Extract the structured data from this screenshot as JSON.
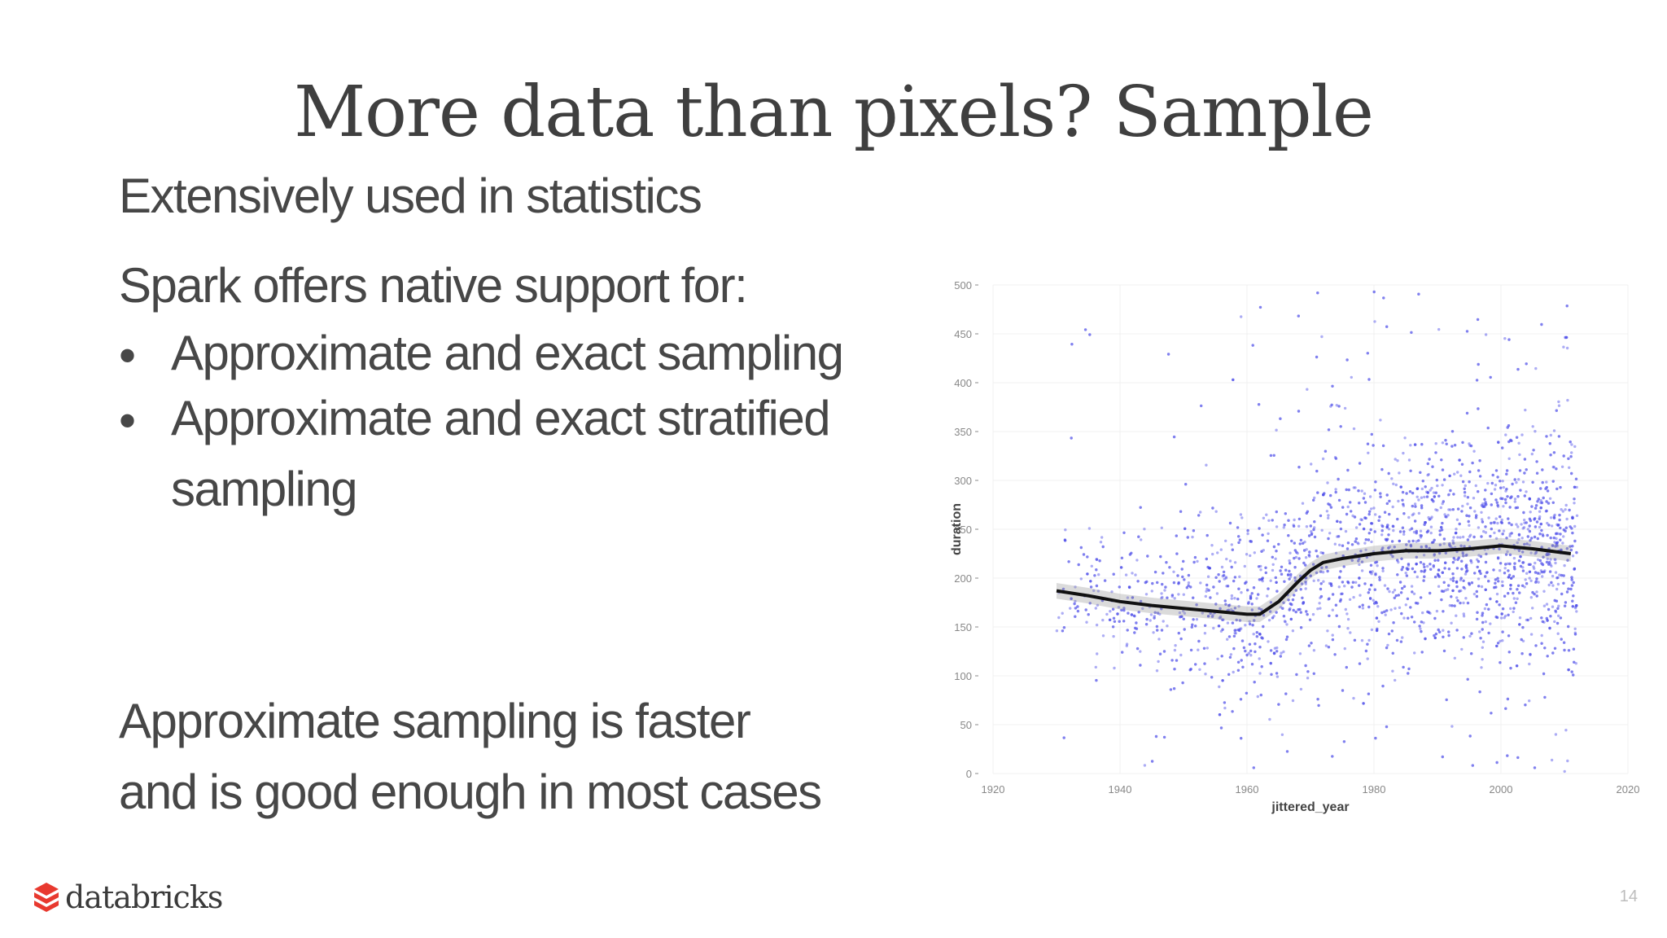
{
  "slide": {
    "title": "More data than pixels? Sample",
    "line1": "Extensively used in statistics",
    "line2": "Spark offers native support for:",
    "bullets": [
      "Approximate and exact sampling",
      "Approximate and exact stratified sampling"
    ],
    "bullet_glyph": "•",
    "closing_line1": "Approximate sampling is faster",
    "closing_line2": "and is good enough in most cases",
    "logo_text": "databricks",
    "page_number": "14"
  },
  "colors": {
    "points": "#4a4ae8",
    "trend": "#111111",
    "logo_mark": "#e8392f"
  },
  "chart_data": {
    "type": "scatter",
    "xlabel": "jittered_year",
    "ylabel": "duration",
    "xlim": [
      1920,
      2020
    ],
    "ylim": [
      0,
      500
    ],
    "xticks": [
      "1920",
      "1940",
      "1960",
      "1980",
      "2000",
      "2020"
    ],
    "yticks": [
      "0",
      "50",
      "100",
      "150",
      "200",
      "250",
      "300",
      "350",
      "400",
      "450",
      "500"
    ],
    "grid": true,
    "series": [
      {
        "kind": "trend_line",
        "x": [
          1930,
          1935,
          1940,
          1945,
          1950,
          1955,
          1960,
          1962,
          1965,
          1968,
          1970,
          1972,
          1975,
          1980,
          1985,
          1990,
          1995,
          2000,
          2005,
          2011
        ],
        "y": [
          187,
          182,
          176,
          172,
          169,
          166,
          163,
          163,
          176,
          196,
          208,
          216,
          220,
          225,
          228,
          228,
          230,
          233,
          230,
          225
        ]
      }
    ]
  }
}
